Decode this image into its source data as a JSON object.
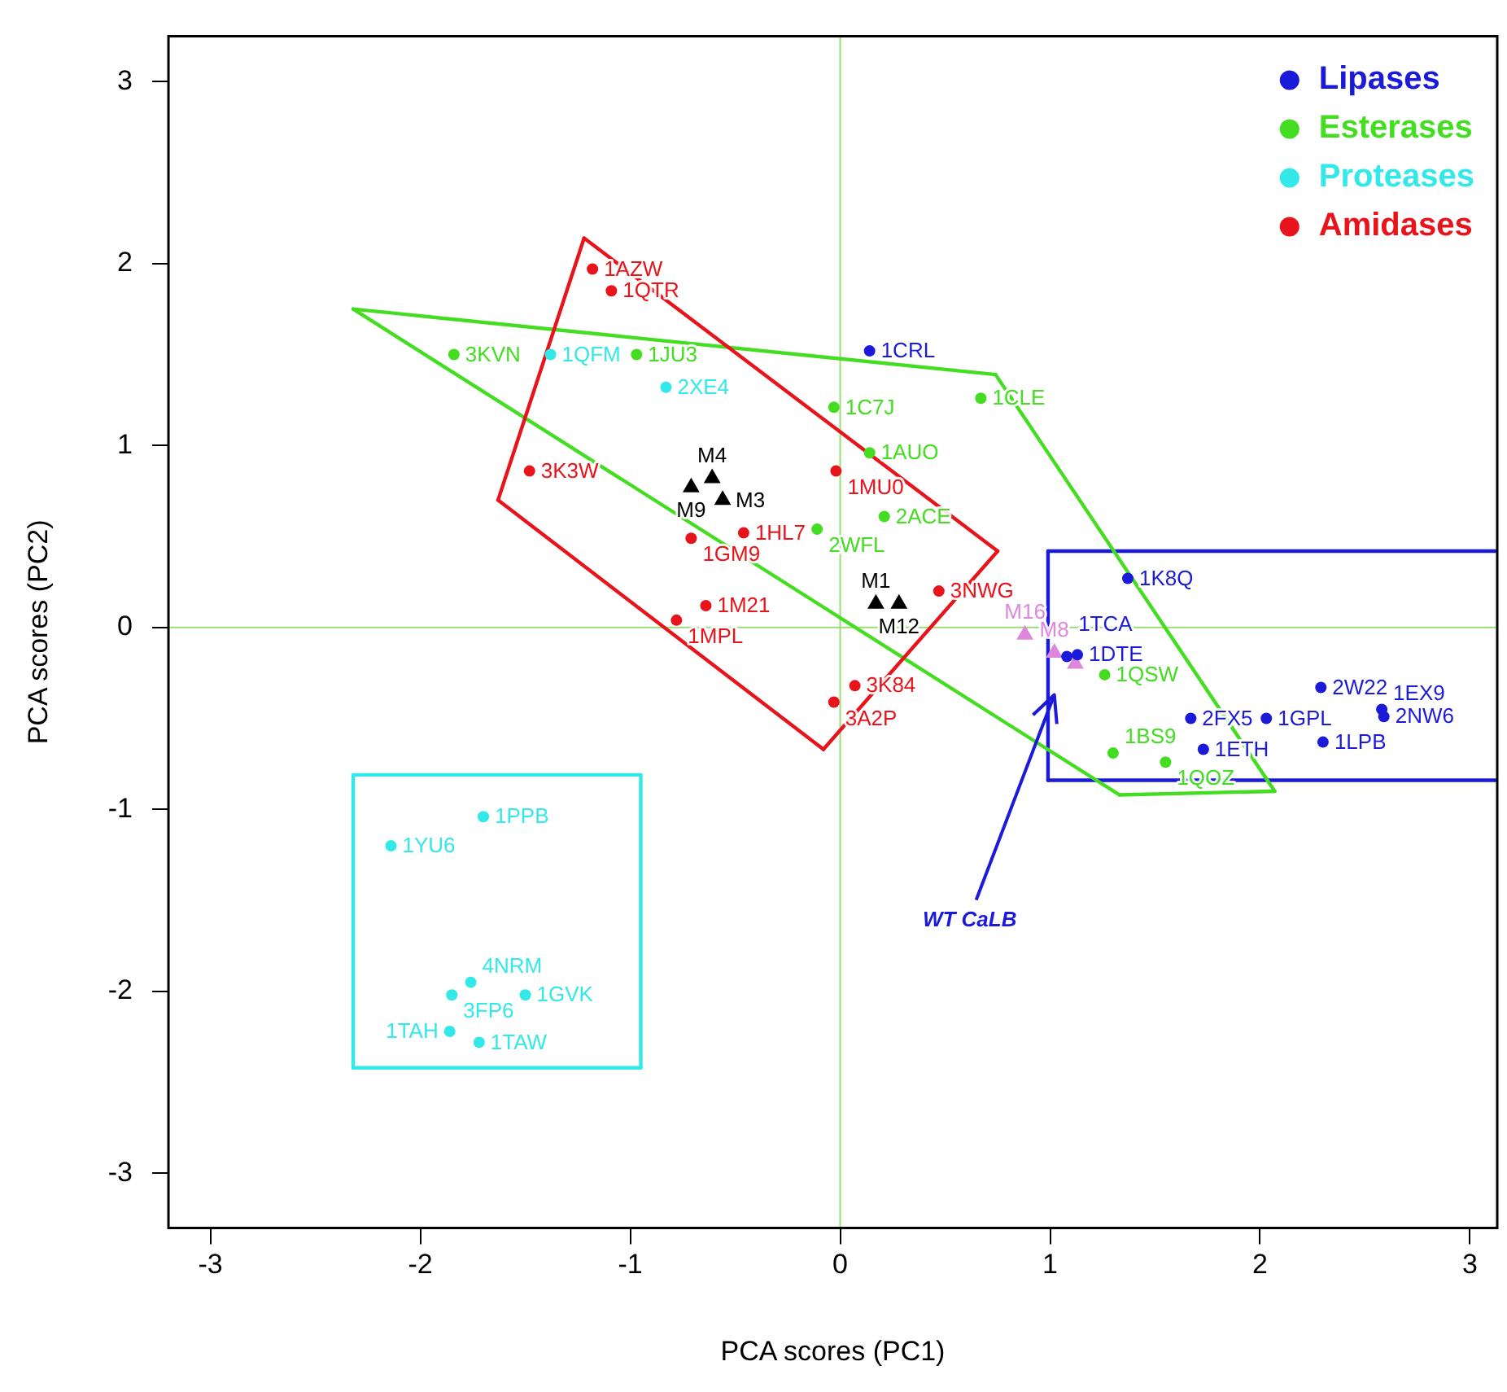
{
  "chart_data": {
    "type": "scatter",
    "xlabel": "PCA scores (PC1)",
    "ylabel": "PCA scores (PC2)",
    "xlim": [
      -3.2,
      3.13
    ],
    "ylim": [
      -3.3,
      3.25
    ],
    "xticks": [
      -3,
      -2,
      -1,
      0,
      1,
      2,
      3
    ],
    "yticks": [
      -3,
      -2,
      -1,
      0,
      1,
      2,
      3
    ],
    "grid": false,
    "legend": "top right",
    "marker": "circle",
    "annotations": [
      {
        "text": "1CRL",
        "x": 0.14,
        "y": 1.52
      },
      {
        "text": "1K8Q",
        "x": 1.37,
        "y": 0.27
      },
      {
        "text": "1TCA",
        "x": 1.08,
        "y": -0.16
      },
      {
        "text": "1DTE",
        "x": 1.13,
        "y": -0.15
      },
      {
        "text": "2W22",
        "x": 2.29,
        "y": -0.33
      },
      {
        "text": "2FX5",
        "x": 1.67,
        "y": -0.5
      },
      {
        "text": "1GPL",
        "x": 2.03,
        "y": -0.5
      },
      {
        "text": "1EX9",
        "x": 2.58,
        "y": -0.45
      },
      {
        "text": "2NW6",
        "x": 2.59,
        "y": -0.49
      },
      {
        "text": "1ETH",
        "x": 1.73,
        "y": -0.67
      },
      {
        "text": "1LPB",
        "x": 2.3,
        "y": -0.63
      },
      {
        "text": "3KVN",
        "x": -1.84,
        "y": 1.5
      },
      {
        "text": "1JU3",
        "x": -0.97,
        "y": 1.5
      },
      {
        "text": "1C7J",
        "x": -0.03,
        "y": 1.21
      },
      {
        "text": "1CLE",
        "x": 0.67,
        "y": 1.26
      },
      {
        "text": "1AUO",
        "x": 0.14,
        "y": 0.96
      },
      {
        "text": "2ACE",
        "x": 0.21,
        "y": 0.61
      },
      {
        "text": "2WFL",
        "x": -0.11,
        "y": 0.54
      },
      {
        "text": "1QSW",
        "x": 1.26,
        "y": -0.26
      },
      {
        "text": "1BS9",
        "x": 1.3,
        "y": -0.69
      },
      {
        "text": "1QOZ",
        "x": 1.55,
        "y": -0.74
      },
      {
        "text": "1QFM",
        "x": -1.38,
        "y": 1.5
      },
      {
        "text": "2XE4",
        "x": -0.83,
        "y": 1.32
      },
      {
        "text": "1PPB",
        "x": -1.7,
        "y": -1.04
      },
      {
        "text": "1YU6",
        "x": -2.14,
        "y": -1.2
      },
      {
        "text": "4NRM",
        "x": -1.76,
        "y": -1.95
      },
      {
        "text": "3FP6",
        "x": -1.85,
        "y": -2.02
      },
      {
        "text": "1GVK",
        "x": -1.5,
        "y": -2.02
      },
      {
        "text": "1TAH",
        "x": -1.86,
        "y": -2.22
      },
      {
        "text": "1TAW",
        "x": -1.72,
        "y": -2.28
      },
      {
        "text": "1AZW",
        "x": -1.18,
        "y": 1.97
      },
      {
        "text": "1QTR",
        "x": -1.09,
        "y": 1.85
      },
      {
        "text": "3K3W",
        "x": -1.48,
        "y": 0.86
      },
      {
        "text": "1MU0",
        "x": -0.02,
        "y": 0.86
      },
      {
        "text": "1GM9",
        "x": -0.71,
        "y": 0.49
      },
      {
        "text": "1HL7",
        "x": -0.46,
        "y": 0.52
      },
      {
        "text": "1M21",
        "x": -0.64,
        "y": 0.12
      },
      {
        "text": "1MPL",
        "x": -0.78,
        "y": 0.04
      },
      {
        "text": "3NWG",
        "x": 0.47,
        "y": 0.2
      },
      {
        "text": "3K84",
        "x": 0.07,
        "y": -0.32
      },
      {
        "text": "3A2P",
        "x": -0.03,
        "y": -0.41
      },
      {
        "text": "M9",
        "x": -0.71,
        "y": 0.77
      },
      {
        "text": "M4",
        "x": -0.61,
        "y": 0.82
      },
      {
        "text": "M3",
        "x": -0.56,
        "y": 0.7
      },
      {
        "text": "M1",
        "x": 0.17,
        "y": 0.13
      },
      {
        "text": "M12",
        "x": 0.28,
        "y": 0.13
      },
      {
        "text": "M16",
        "x": 0.88,
        "y": -0.04
      },
      {
        "text": "M8",
        "x": 1.02,
        "y": -0.14
      },
      {
        "text": "WT CaLB",
        "x": 1.02,
        "y": -0.37
      }
    ],
    "series": [
      {
        "name": "Lipases",
        "color": "#1a1ad8",
        "x": [
          0.14,
          1.37,
          1.08,
          1.13,
          2.29,
          1.67,
          2.03,
          2.58,
          2.59,
          1.73,
          2.3
        ],
        "values": [
          1.52,
          0.27,
          -0.16,
          -0.15,
          -0.33,
          -0.5,
          -0.5,
          -0.45,
          -0.49,
          -0.67,
          -0.63
        ]
      },
      {
        "name": "Esterases",
        "color": "#44dd22",
        "x": [
          -1.84,
          -0.97,
          -0.03,
          0.67,
          0.14,
          0.21,
          -0.11,
          1.26,
          1.3,
          1.55
        ],
        "values": [
          1.5,
          1.5,
          1.21,
          1.26,
          0.96,
          0.61,
          0.54,
          -0.26,
          -0.69,
          -0.74
        ]
      },
      {
        "name": "Proteases",
        "color": "#33e8e8",
        "x": [
          -1.38,
          -0.83,
          -1.7,
          -2.14,
          -1.76,
          -1.85,
          -1.5,
          -1.86,
          -1.72
        ],
        "values": [
          1.5,
          1.32,
          -1.04,
          -1.2,
          -1.95,
          -2.02,
          -2.02,
          -2.22,
          -2.28
        ]
      },
      {
        "name": "Amidases",
        "color": "#e8141b",
        "x": [
          -1.18,
          -1.09,
          -1.48,
          -0.02,
          -0.71,
          -0.46,
          -0.64,
          -0.78,
          0.47,
          0.07,
          -0.03
        ],
        "values": [
          1.97,
          1.85,
          0.86,
          0.86,
          0.49,
          0.52,
          0.12,
          0.04,
          0.2,
          -0.32,
          -0.41
        ]
      },
      {
        "color": "#000000",
        "marker": "triangle",
        "x": [
          -0.71,
          -0.61,
          -0.56,
          0.17,
          0.28
        ],
        "values": [
          0.77,
          0.82,
          0.7,
          0.13,
          0.13
        ]
      },
      {
        "color": "#dd88dd",
        "marker": "triangle",
        "x": [
          0.88,
          1.02,
          1.12
        ],
        "values": [
          -0.04,
          -0.14,
          -0.2
        ]
      },
      {
        "type": "line",
        "color": "#e8141b",
        "marker": "none",
        "x": [
          -1.63,
          -1.22
        ],
        "values": [
          0.7,
          2.14
        ]
      },
      {
        "type": "line",
        "color": "#e8141b",
        "marker": "none",
        "x": [
          -1.22,
          0.75
        ],
        "values": [
          2.14,
          0.42
        ]
      },
      {
        "type": "line",
        "color": "#e8141b",
        "marker": "none",
        "x": [
          -0.08,
          0.75
        ],
        "values": [
          -0.67,
          0.42
        ]
      },
      {
        "type": "line",
        "color": "#e8141b",
        "marker": "none",
        "x": [
          -1.63,
          -0.08
        ],
        "values": [
          0.7,
          -0.67
        ]
      },
      {
        "type": "line",
        "color": "#44dd22",
        "marker": "none",
        "x": [
          -2.32,
          0.74
        ],
        "values": [
          1.75,
          1.39
        ]
      },
      {
        "type": "line",
        "color": "#44dd22",
        "marker": "none",
        "x": [
          0.74,
          2.07
        ],
        "values": [
          1.39,
          -0.9
        ]
      },
      {
        "type": "line",
        "color": "#44dd22",
        "marker": "none",
        "x": [
          1.33,
          2.07
        ],
        "values": [
          -0.92,
          -0.9
        ]
      },
      {
        "type": "line",
        "color": "#44dd22",
        "marker": "none",
        "x": [
          -2.32,
          1.33
        ],
        "values": [
          1.75,
          -0.92
        ]
      },
      {
        "type": "line",
        "color": "#33e8e8",
        "marker": "none",
        "x": [
          -2.32,
          -0.95
        ],
        "values": [
          -0.81,
          -0.81
        ]
      },
      {
        "type": "line",
        "color": "#33e8e8",
        "marker": "none",
        "x": [
          -2.32,
          -0.95
        ],
        "values": [
          -2.42,
          -2.42
        ]
      },
      {
        "type": "line",
        "color": "#33e8e8",
        "marker": "none",
        "x": [
          -2.32,
          -2.32
        ],
        "values": [
          -2.42,
          -0.81
        ]
      },
      {
        "type": "line",
        "color": "#33e8e8",
        "marker": "none",
        "x": [
          -0.95,
          -0.95
        ],
        "values": [
          -2.42,
          -0.81
        ]
      },
      {
        "type": "line",
        "color": "#1a1ad8",
        "marker": "none",
        "x": [
          0.99,
          3.13
        ],
        "values": [
          0.42,
          0.42
        ]
      },
      {
        "type": "line",
        "color": "#1a1ad8",
        "marker": "none",
        "x": [
          0.99,
          3.13
        ],
        "values": [
          -0.84,
          -0.84
        ]
      },
      {
        "type": "line",
        "color": "#1a1ad8",
        "marker": "none",
        "x": [
          0.99,
          0.99
        ],
        "values": [
          -0.84,
          0.42
        ]
      },
      {
        "type": "line",
        "color": "#99dd77",
        "marker": "none",
        "x": [
          0,
          0
        ],
        "values": [
          -3.3,
          3.25
        ]
      },
      {
        "type": "line",
        "color": "#99dd77",
        "marker": "none",
        "x": [
          -3.2,
          3.13
        ],
        "values": [
          0,
          0
        ]
      }
    ]
  }
}
